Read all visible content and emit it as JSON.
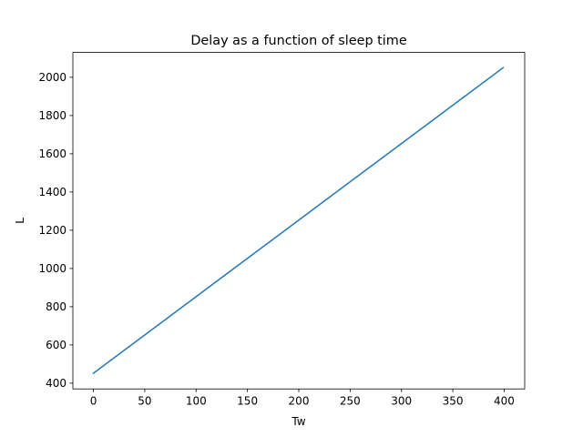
{
  "chart_data": {
    "type": "line",
    "title": "Delay as a function of sleep time",
    "xlabel": "Tw",
    "ylabel": "L",
    "xlim": [
      -20,
      420
    ],
    "ylim": [
      370,
      2130
    ],
    "xticks": [
      0,
      50,
      100,
      150,
      200,
      250,
      300,
      350,
      400
    ],
    "yticks": [
      400,
      600,
      800,
      1000,
      1200,
      1400,
      1600,
      1800,
      2000
    ],
    "grid": false,
    "legend": "none",
    "series": [
      {
        "color": "#1f77b4",
        "x": [
          0,
          399
        ],
        "y": [
          452,
          2050
        ]
      }
    ]
  }
}
